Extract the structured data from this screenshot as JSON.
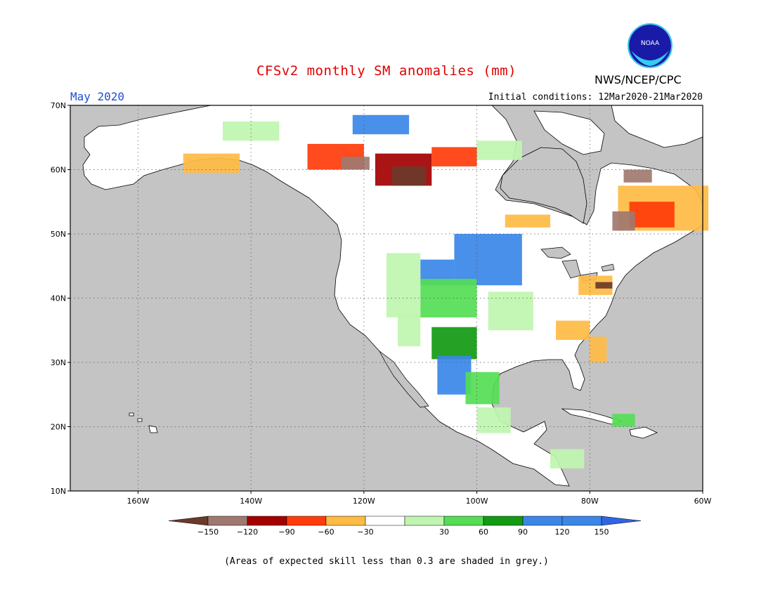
{
  "header": {
    "title": "CFSv2 monthly SM anomalies (mm)",
    "valid_month": "May 2020",
    "initial_conditions": "Initial conditions: 12Mar2020-21Mar2020",
    "agency": "NWS/NCEP/CPC",
    "logo_text": "NOAA"
  },
  "map": {
    "projection": "lat-lon",
    "lon_range": [
      -172,
      -60
    ],
    "lat_range": [
      10,
      70
    ],
    "ocean_color": "#c4c4c4",
    "land_color": "#ffffff",
    "lat_labels": [
      "10N",
      "20N",
      "30N",
      "40N",
      "50N",
      "60N",
      "70N"
    ],
    "lat_values": [
      10,
      20,
      30,
      40,
      50,
      60,
      70
    ],
    "lon_labels": [
      "160W",
      "140W",
      "120W",
      "100W",
      "80W",
      "60W"
    ],
    "lon_values": [
      -160,
      -140,
      -120,
      -100,
      -80,
      -60
    ],
    "anomaly_patches": [
      {
        "lon": -118,
        "lat": 60,
        "w": 10,
        "h": 5,
        "cls": "-90"
      },
      {
        "lon": -130,
        "lat": 62,
        "w": 10,
        "h": 4,
        "cls": "-60"
      },
      {
        "lon": -115,
        "lat": 59,
        "w": 6,
        "h": 3,
        "cls": "-150"
      },
      {
        "lon": -124,
        "lat": 61,
        "w": 5,
        "h": 2,
        "cls": "-120"
      },
      {
        "lon": -108,
        "lat": 62,
        "w": 8,
        "h": 3,
        "cls": "-60"
      },
      {
        "lon": -152,
        "lat": 61,
        "w": 10,
        "h": 3,
        "cls": "-30"
      },
      {
        "lon": -145,
        "lat": 66,
        "w": 10,
        "h": 3,
        "cls": "60"
      },
      {
        "lon": -122,
        "lat": 67,
        "w": 10,
        "h": 3,
        "cls": "150"
      },
      {
        "lon": -100,
        "lat": 63,
        "w": 8,
        "h": 3,
        "cls": "60"
      },
      {
        "lon": -104,
        "lat": 46,
        "w": 12,
        "h": 8,
        "cls": "150"
      },
      {
        "lon": -110,
        "lat": 44,
        "w": 6,
        "h": 4,
        "cls": "150"
      },
      {
        "lon": -110,
        "lat": 40,
        "w": 10,
        "h": 6,
        "cls": "90"
      },
      {
        "lon": -116,
        "lat": 42,
        "w": 6,
        "h": 10,
        "cls": "60"
      },
      {
        "lon": -98,
        "lat": 38,
        "w": 8,
        "h": 6,
        "cls": "60"
      },
      {
        "lon": -108,
        "lat": 33,
        "w": 8,
        "h": 5,
        "cls": "120"
      },
      {
        "lon": -107,
        "lat": 28,
        "w": 6,
        "h": 6,
        "cls": "150"
      },
      {
        "lon": -102,
        "lat": 26,
        "w": 6,
        "h": 5,
        "cls": "90"
      },
      {
        "lon": -100,
        "lat": 21,
        "w": 6,
        "h": 4,
        "cls": "60"
      },
      {
        "lon": -114,
        "lat": 35,
        "w": 4,
        "h": 5,
        "cls": "60"
      },
      {
        "lon": -75,
        "lat": 54,
        "w": 16,
        "h": 7,
        "cls": "-30"
      },
      {
        "lon": -73,
        "lat": 53,
        "w": 8,
        "h": 4,
        "cls": "-60"
      },
      {
        "lon": -76,
        "lat": 52,
        "w": 4,
        "h": 3,
        "cls": "-120"
      },
      {
        "lon": -74,
        "lat": 59,
        "w": 5,
        "h": 2,
        "cls": "-120"
      },
      {
        "lon": -95,
        "lat": 52,
        "w": 8,
        "h": 2,
        "cls": "-30"
      },
      {
        "lon": -80,
        "lat": 32,
        "w": 3,
        "h": 4,
        "cls": "-30"
      },
      {
        "lon": -86,
        "lat": 35,
        "w": 6,
        "h": 3,
        "cls": "-30"
      },
      {
        "lon": -90,
        "lat": 38,
        "w": 6,
        "h": 3,
        "cls": "30"
      },
      {
        "lon": -82,
        "lat": 42,
        "w": 6,
        "h": 3,
        "cls": "-30"
      },
      {
        "lon": -79,
        "lat": 42,
        "w": 3,
        "h": 1,
        "cls": "-150"
      },
      {
        "lon": -87,
        "lat": 15,
        "w": 6,
        "h": 3,
        "cls": "60"
      },
      {
        "lon": -76,
        "lat": 21,
        "w": 4,
        "h": 2,
        "cls": "90"
      }
    ]
  },
  "colorbar": {
    "labels": [
      "-150",
      "-120",
      "-90",
      "-60",
      "-30",
      "30",
      "60",
      "90",
      "120",
      "150"
    ],
    "colors": [
      "#6b3a2a",
      "#a07870",
      "#a30000",
      "#e0300f",
      "#ff5a10",
      "#f4b840",
      "#ffffff",
      "#bdf5a8",
      "#55dd55",
      "#129a12",
      "#3a87e8",
      "#2f65e3"
    ]
  },
  "footer": {
    "note": "(Areas of expected skill less than 0.3 are shaded in grey.)"
  }
}
